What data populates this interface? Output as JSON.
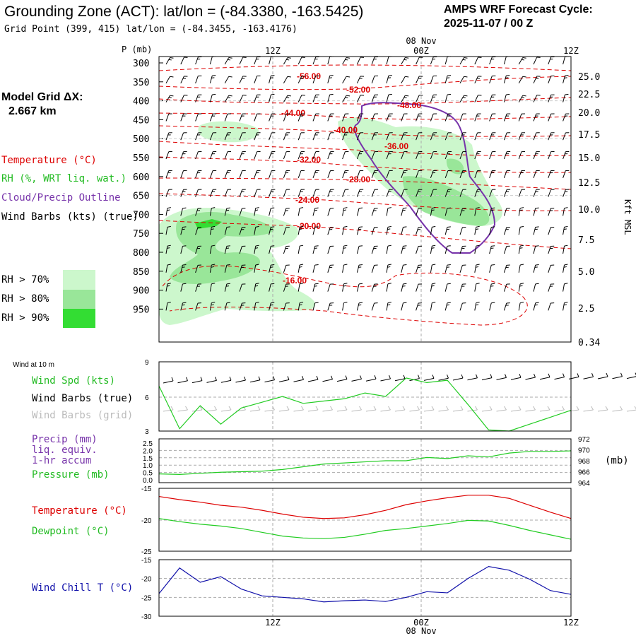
{
  "header": {
    "title": "Grounding Zone (ACT):  lat/lon = (-84.3380, -163.5425)",
    "grid_point": "Grid Point (399, 415) lat/lon = (-84.3455, -163.4176)",
    "cycle_title": "AMPS WRF Forecast Cycle:",
    "cycle_value": "2025-11-07 / 00  Z"
  },
  "left_panel": {
    "model_grid_label": "Model Grid ΔX:",
    "model_grid_value": "2.667 km",
    "legend_temperature": "Temperature (°C)",
    "legend_rh": "RH (%, WRT liq. wat.)",
    "legend_cloud": "Cloud/Precip Outline",
    "legend_barbs": "Wind Barbs (kts) (true)",
    "rh_legend": [
      {
        "label": "RH > 70%",
        "color": "#ccf7cc"
      },
      {
        "label": "RH > 80%",
        "color": "#99e699"
      },
      {
        "label": "RH > 90%",
        "color": "#33dd33"
      }
    ]
  },
  "colors": {
    "temperature": "#dd0000",
    "rh": "#22bb22",
    "cloud": "#7733aa",
    "dewpoint": "#22cc22",
    "windchill": "#1111aa",
    "barb_grid": "#bbbbbb",
    "grid": "#aaaaaa"
  },
  "chart_data": [
    {
      "type": "heatmap",
      "name": "cross-section",
      "ylabel": "P (mb)",
      "y_right_label": "Kft MSL",
      "x_ticks_top": [
        "12Z",
        "00Z",
        "12Z"
      ],
      "date_label_top": "08 Nov",
      "p_levels": [
        "300",
        "350",
        "400",
        "450",
        "500",
        "550",
        "600",
        "650",
        "700",
        "750",
        "800",
        "850",
        "900",
        "950"
      ],
      "kft_ticks": [
        "25.0",
        "22.5",
        "20.0",
        "17.5",
        "15.0",
        "12.5",
        "10.0",
        "7.5",
        "5.0",
        "2.5",
        "0.34"
      ],
      "temperature_labels": [
        "-56.00",
        "-52.00",
        "-48.00",
        "-44.00",
        "-40.00",
        "-36.00",
        "-32.00",
        "-28.00",
        "-24.00",
        "-20.00",
        "-16.00"
      ]
    },
    {
      "type": "line",
      "name": "surface-wind",
      "title": "Wind at 10 m",
      "series_labels": [
        "Wind Spd (kts)",
        "Wind Barbs (true)",
        "Wind Barbs (grid)"
      ],
      "ylim": [
        3,
        9
      ],
      "y_ticks": [
        "9",
        "6",
        "3"
      ],
      "x_hours": [
        0,
        2,
        4,
        6,
        8,
        10,
        12,
        14,
        16,
        18,
        20,
        22,
        24,
        26,
        28,
        30,
        32,
        34,
        36,
        38,
        40
      ],
      "values": [
        6.9,
        3.2,
        5.2,
        3.6,
        5.0,
        5.5,
        6.0,
        5.4,
        5.6,
        5.8,
        6.3,
        6.0,
        7.6,
        7.2,
        7.4,
        5.3,
        3.1,
        3.0,
        3.6,
        4.2,
        4.8
      ]
    },
    {
      "type": "line",
      "name": "precip-pressure",
      "series_labels": [
        "Precip (mm)",
        "liq. equiv.",
        "1-hr accum",
        "Pressure (mb)"
      ],
      "y_ticks_left": [
        "2.5",
        "2.0",
        "1.5",
        "1.0",
        "0.5",
        "0.0"
      ],
      "y_ticks_right": [
        "972",
        "970",
        "968",
        "966",
        "964"
      ],
      "right_unit": "(mb)",
      "ylim_pressure": [
        964,
        972
      ],
      "x_hours": [
        0,
        2,
        4,
        6,
        8,
        10,
        12,
        14,
        16,
        18,
        20,
        22,
        24,
        26,
        28,
        30,
        32,
        34,
        36,
        38,
        40
      ],
      "pressure": [
        965.6,
        965.5,
        965.7,
        965.9,
        966.0,
        966.1,
        966.4,
        966.9,
        967.4,
        967.6,
        967.8,
        968.0,
        968.0,
        968.6,
        968.4,
        968.9,
        968.7,
        969.4,
        969.7,
        969.7,
        969.8
      ]
    },
    {
      "type": "line",
      "name": "temp-dewpoint",
      "series_labels": [
        "Temperature (°C)",
        "Dewpoint (°C)"
      ],
      "ylim": [
        -25,
        -15
      ],
      "y_ticks": [
        "-15",
        "-20",
        "-25"
      ],
      "x_hours": [
        0,
        2,
        4,
        6,
        8,
        10,
        12,
        14,
        16,
        18,
        20,
        22,
        24,
        26,
        28,
        30,
        32,
        34,
        36,
        38,
        40
      ],
      "temperature": [
        -16.3,
        -16.8,
        -17.2,
        -17.7,
        -18.0,
        -18.5,
        -19.1,
        -19.6,
        -19.8,
        -19.7,
        -19.2,
        -18.5,
        -17.6,
        -17.0,
        -16.5,
        -16.1,
        -16.1,
        -16.6,
        -17.7,
        -18.8,
        -19.8
      ],
      "dewpoint": [
        -19.8,
        -20.3,
        -20.7,
        -21.0,
        -21.4,
        -22.0,
        -22.6,
        -22.9,
        -23.0,
        -22.8,
        -22.3,
        -21.7,
        -21.4,
        -21.0,
        -20.6,
        -20.1,
        -20.2,
        -20.9,
        -21.7,
        -22.4,
        -23.1
      ]
    },
    {
      "type": "line",
      "name": "wind-chill",
      "series_labels": [
        "Wind Chill T (°C)"
      ],
      "ylim": [
        -30,
        -15
      ],
      "y_ticks": [
        "-15",
        "-20",
        "-25",
        "-30"
      ],
      "x_ticks_bottom": [
        "12Z",
        "00Z",
        "12Z"
      ],
      "date_label_bottom": "08 Nov",
      "x_hours": [
        0,
        2,
        4,
        6,
        8,
        10,
        12,
        14,
        16,
        18,
        20,
        22,
        24,
        26,
        28,
        30,
        32,
        34,
        36,
        38,
        40
      ],
      "values": [
        -24.0,
        -17.2,
        -21.0,
        -19.5,
        -22.8,
        -24.6,
        -25.0,
        -25.4,
        -26.2,
        -25.9,
        -25.7,
        -26.1,
        -25.0,
        -23.5,
        -23.8,
        -20.0,
        -16.8,
        -17.8,
        -20.2,
        -23.2,
        -24.2
      ]
    }
  ]
}
